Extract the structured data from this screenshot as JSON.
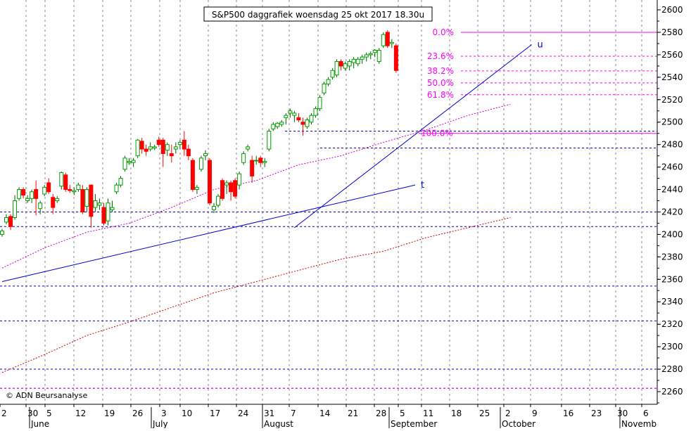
{
  "chart_data": {
    "type": "candlestick",
    "title": "S&P500 daggrafiek woensdag 25 okt 2017 18.30u",
    "watermark": "© ADN Beursanalyse",
    "ylim": [
      2250,
      2610
    ],
    "y_ticks": [
      2260,
      2280,
      2300,
      2320,
      2340,
      2360,
      2380,
      2400,
      2420,
      2440,
      2460,
      2480,
      2500,
      2520,
      2540,
      2560,
      2580,
      2600
    ],
    "x_day_ticks": [
      "2",
      "30",
      "5",
      "12",
      "19",
      "26",
      "3",
      "10",
      "17",
      "24",
      "31",
      "7",
      "14",
      "21",
      "28",
      "5",
      "11",
      "18",
      "25",
      "2",
      "9",
      "16",
      "23",
      "30",
      "6"
    ],
    "x_month_ticks": [
      "June",
      "July",
      "August",
      "September",
      "October",
      "Novemb"
    ],
    "colors": {
      "up": "#00a000",
      "down": "#ff0000",
      "fib": "#ff00ff",
      "trend": "#0000cc",
      "ma_short": "#cc00cc",
      "ma_long": "#cc0000",
      "grid": "#888888"
    },
    "candles": [
      {
        "o": 2400,
        "h": 2405,
        "l": 2398,
        "c": 2403
      },
      {
        "o": 2411,
        "h": 2418,
        "l": 2409,
        "c": 2415
      },
      {
        "o": 2416,
        "h": 2418,
        "l": 2404,
        "c": 2407
      },
      {
        "o": 2415,
        "h": 2435,
        "l": 2413,
        "c": 2430
      },
      {
        "o": 2432,
        "h": 2442,
        "l": 2430,
        "c": 2440
      },
      {
        "o": 2440,
        "h": 2442,
        "l": 2432,
        "c": 2435
      },
      {
        "o": 2430,
        "h": 2435,
        "l": 2428,
        "c": 2432
      },
      {
        "o": 2432,
        "h": 2440,
        "l": 2428,
        "c": 2438
      },
      {
        "o": 2440,
        "h": 2448,
        "l": 2417,
        "c": 2432
      },
      {
        "o": 2423,
        "h": 2430,
        "l": 2418,
        "c": 2428
      },
      {
        "o": 2436,
        "h": 2444,
        "l": 2434,
        "c": 2442
      },
      {
        "o": 2446,
        "h": 2450,
        "l": 2436,
        "c": 2438
      },
      {
        "o": 2433,
        "h": 2436,
        "l": 2418,
        "c": 2424
      },
      {
        "o": 2430,
        "h": 2434,
        "l": 2428,
        "c": 2432
      },
      {
        "o": 2443,
        "h": 2456,
        "l": 2440,
        "c": 2455
      },
      {
        "o": 2453,
        "h": 2455,
        "l": 2438,
        "c": 2440
      },
      {
        "o": 2440,
        "h": 2444,
        "l": 2437,
        "c": 2439
      },
      {
        "o": 2438,
        "h": 2442,
        "l": 2435,
        "c": 2439
      },
      {
        "o": 2440,
        "h": 2446,
        "l": 2438,
        "c": 2444
      },
      {
        "o": 2440,
        "h": 2444,
        "l": 2418,
        "c": 2420
      },
      {
        "o": 2425,
        "h": 2442,
        "l": 2420,
        "c": 2440
      },
      {
        "o": 2444,
        "h": 2444,
        "l": 2406,
        "c": 2416
      },
      {
        "o": 2424,
        "h": 2436,
        "l": 2420,
        "c": 2430
      },
      {
        "o": 2426,
        "h": 2432,
        "l": 2422,
        "c": 2428
      },
      {
        "o": 2424,
        "h": 2428,
        "l": 2408,
        "c": 2410
      },
      {
        "o": 2412,
        "h": 2432,
        "l": 2408,
        "c": 2428
      },
      {
        "o": 2422,
        "h": 2430,
        "l": 2420,
        "c": 2424
      },
      {
        "o": 2438,
        "h": 2446,
        "l": 2436,
        "c": 2444
      },
      {
        "o": 2444,
        "h": 2452,
        "l": 2442,
        "c": 2450
      },
      {
        "o": 2458,
        "h": 2470,
        "l": 2456,
        "c": 2468
      },
      {
        "o": 2464,
        "h": 2468,
        "l": 2462,
        "c": 2465
      },
      {
        "o": 2464,
        "h": 2468,
        "l": 2460,
        "c": 2466
      },
      {
        "o": 2470,
        "h": 2485,
        "l": 2468,
        "c": 2484
      },
      {
        "o": 2483,
        "h": 2486,
        "l": 2472,
        "c": 2476
      },
      {
        "o": 2476,
        "h": 2480,
        "l": 2470,
        "c": 2474
      },
      {
        "o": 2476,
        "h": 2482,
        "l": 2474,
        "c": 2478
      },
      {
        "o": 2477,
        "h": 2480,
        "l": 2475,
        "c": 2478
      },
      {
        "o": 2484,
        "h": 2487,
        "l": 2478,
        "c": 2480
      },
      {
        "o": 2484,
        "h": 2486,
        "l": 2460,
        "c": 2472
      },
      {
        "o": 2475,
        "h": 2482,
        "l": 2470,
        "c": 2480
      },
      {
        "o": 2472,
        "h": 2480,
        "l": 2464,
        "c": 2470
      },
      {
        "o": 2476,
        "h": 2482,
        "l": 2472,
        "c": 2478
      },
      {
        "o": 2480,
        "h": 2484,
        "l": 2476,
        "c": 2482
      },
      {
        "o": 2484,
        "h": 2492,
        "l": 2470,
        "c": 2476
      },
      {
        "o": 2476,
        "h": 2480,
        "l": 2466,
        "c": 2470
      },
      {
        "o": 2466,
        "h": 2468,
        "l": 2438,
        "c": 2440
      },
      {
        "o": 2440,
        "h": 2444,
        "l": 2436,
        "c": 2442
      },
      {
        "o": 2458,
        "h": 2470,
        "l": 2456,
        "c": 2468
      },
      {
        "o": 2470,
        "h": 2475,
        "l": 2466,
        "c": 2472
      },
      {
        "o": 2466,
        "h": 2468,
        "l": 2426,
        "c": 2428
      },
      {
        "o": 2422,
        "h": 2428,
        "l": 2419,
        "c": 2425
      },
      {
        "o": 2426,
        "h": 2436,
        "l": 2424,
        "c": 2434
      },
      {
        "o": 2448,
        "h": 2450,
        "l": 2430,
        "c": 2432
      },
      {
        "o": 2444,
        "h": 2448,
        "l": 2436,
        "c": 2446
      },
      {
        "o": 2446,
        "h": 2448,
        "l": 2430,
        "c": 2438
      },
      {
        "o": 2448,
        "h": 2450,
        "l": 2432,
        "c": 2434
      },
      {
        "o": 2444,
        "h": 2456,
        "l": 2440,
        "c": 2454
      },
      {
        "o": 2464,
        "h": 2474,
        "l": 2462,
        "c": 2472
      },
      {
        "o": 2476,
        "h": 2480,
        "l": 2474,
        "c": 2478
      },
      {
        "o": 2466,
        "h": 2470,
        "l": 2446,
        "c": 2452
      },
      {
        "o": 2466,
        "h": 2470,
        "l": 2462,
        "c": 2466
      },
      {
        "o": 2468,
        "h": 2470,
        "l": 2460,
        "c": 2464
      },
      {
        "o": 2464,
        "h": 2468,
        "l": 2460,
        "c": 2465
      },
      {
        "o": 2476,
        "h": 2494,
        "l": 2474,
        "c": 2492
      },
      {
        "o": 2494,
        "h": 2500,
        "l": 2492,
        "c": 2498
      },
      {
        "o": 2496,
        "h": 2500,
        "l": 2494,
        "c": 2499
      },
      {
        "o": 2498,
        "h": 2502,
        "l": 2496,
        "c": 2500
      },
      {
        "o": 2504,
        "h": 2508,
        "l": 2498,
        "c": 2506
      },
      {
        "o": 2508,
        "h": 2512,
        "l": 2504,
        "c": 2510
      },
      {
        "o": 2506,
        "h": 2510,
        "l": 2500,
        "c": 2508
      },
      {
        "o": 2504,
        "h": 2508,
        "l": 2500,
        "c": 2502
      },
      {
        "o": 2500,
        "h": 2504,
        "l": 2488,
        "c": 2498
      },
      {
        "o": 2496,
        "h": 2504,
        "l": 2494,
        "c": 2502
      },
      {
        "o": 2500,
        "h": 2508,
        "l": 2498,
        "c": 2506
      },
      {
        "o": 2506,
        "h": 2514,
        "l": 2504,
        "c": 2512
      },
      {
        "o": 2512,
        "h": 2524,
        "l": 2510,
        "c": 2522
      },
      {
        "o": 2526,
        "h": 2536,
        "l": 2524,
        "c": 2534
      },
      {
        "o": 2534,
        "h": 2540,
        "l": 2532,
        "c": 2538
      },
      {
        "o": 2540,
        "h": 2548,
        "l": 2538,
        "c": 2546
      },
      {
        "o": 2542,
        "h": 2556,
        "l": 2540,
        "c": 2554
      },
      {
        "o": 2554,
        "h": 2556,
        "l": 2546,
        "c": 2550
      },
      {
        "o": 2548,
        "h": 2554,
        "l": 2546,
        "c": 2552
      },
      {
        "o": 2550,
        "h": 2556,
        "l": 2546,
        "c": 2554
      },
      {
        "o": 2553,
        "h": 2558,
        "l": 2548,
        "c": 2556
      },
      {
        "o": 2552,
        "h": 2558,
        "l": 2550,
        "c": 2556
      },
      {
        "o": 2556,
        "h": 2560,
        "l": 2552,
        "c": 2558
      },
      {
        "o": 2558,
        "h": 2562,
        "l": 2554,
        "c": 2560
      },
      {
        "o": 2560,
        "h": 2563,
        "l": 2556,
        "c": 2561
      },
      {
        "o": 2562,
        "h": 2565,
        "l": 2558,
        "c": 2564
      },
      {
        "o": 2554,
        "h": 2566,
        "l": 2552,
        "c": 2564
      },
      {
        "o": 2568,
        "h": 2580,
        "l": 2566,
        "c": 2578
      },
      {
        "o": 2580,
        "h": 2582,
        "l": 2566,
        "c": 2568
      },
      {
        "o": 2570,
        "h": 2574,
        "l": 2566,
        "c": 2571
      },
      {
        "o": 2568,
        "h": 2570,
        "l": 2544,
        "c": 2546
      }
    ],
    "fib_levels": [
      {
        "label": "0.0%",
        "value": 2580
      },
      {
        "label": "23.6%",
        "value": 2558.7
      },
      {
        "label": "38.2%",
        "value": 2545.6
      },
      {
        "label": "50.0%",
        "value": 2535
      },
      {
        "label": "61.8%",
        "value": 2524.4
      },
      {
        "label": "100.0%",
        "value": 2490
      }
    ],
    "support_levels": [
      2492,
      2477,
      2420,
      2407,
      2354,
      2323,
      2280,
      2263
    ],
    "trendline_t": {
      "label": "t",
      "x1": 0,
      "y1": 2358,
      "x2": 97.5,
      "y2": 2444
    },
    "trendline_u": {
      "label": "u",
      "x1": 69,
      "y1": 2406,
      "x2": 125,
      "y2": 2569
    },
    "ma_short": [
      [
        0,
        2370
      ],
      [
        10,
        2388
      ],
      [
        20,
        2402
      ],
      [
        30,
        2410
      ],
      [
        40,
        2424
      ],
      [
        50,
        2440
      ],
      [
        60,
        2448
      ],
      [
        70,
        2462
      ],
      [
        80,
        2470
      ],
      [
        90,
        2482
      ],
      [
        100,
        2493
      ],
      [
        110,
        2506
      ],
      [
        120,
        2516
      ]
    ],
    "ma_long": [
      [
        0,
        2277
      ],
      [
        10,
        2293
      ],
      [
        20,
        2310
      ],
      [
        30,
        2322
      ],
      [
        40,
        2335
      ],
      [
        50,
        2348
      ],
      [
        60,
        2358
      ],
      [
        70,
        2368
      ],
      [
        80,
        2378
      ],
      [
        90,
        2385
      ],
      [
        100,
        2397
      ],
      [
        110,
        2406
      ],
      [
        120,
        2415
      ]
    ]
  }
}
